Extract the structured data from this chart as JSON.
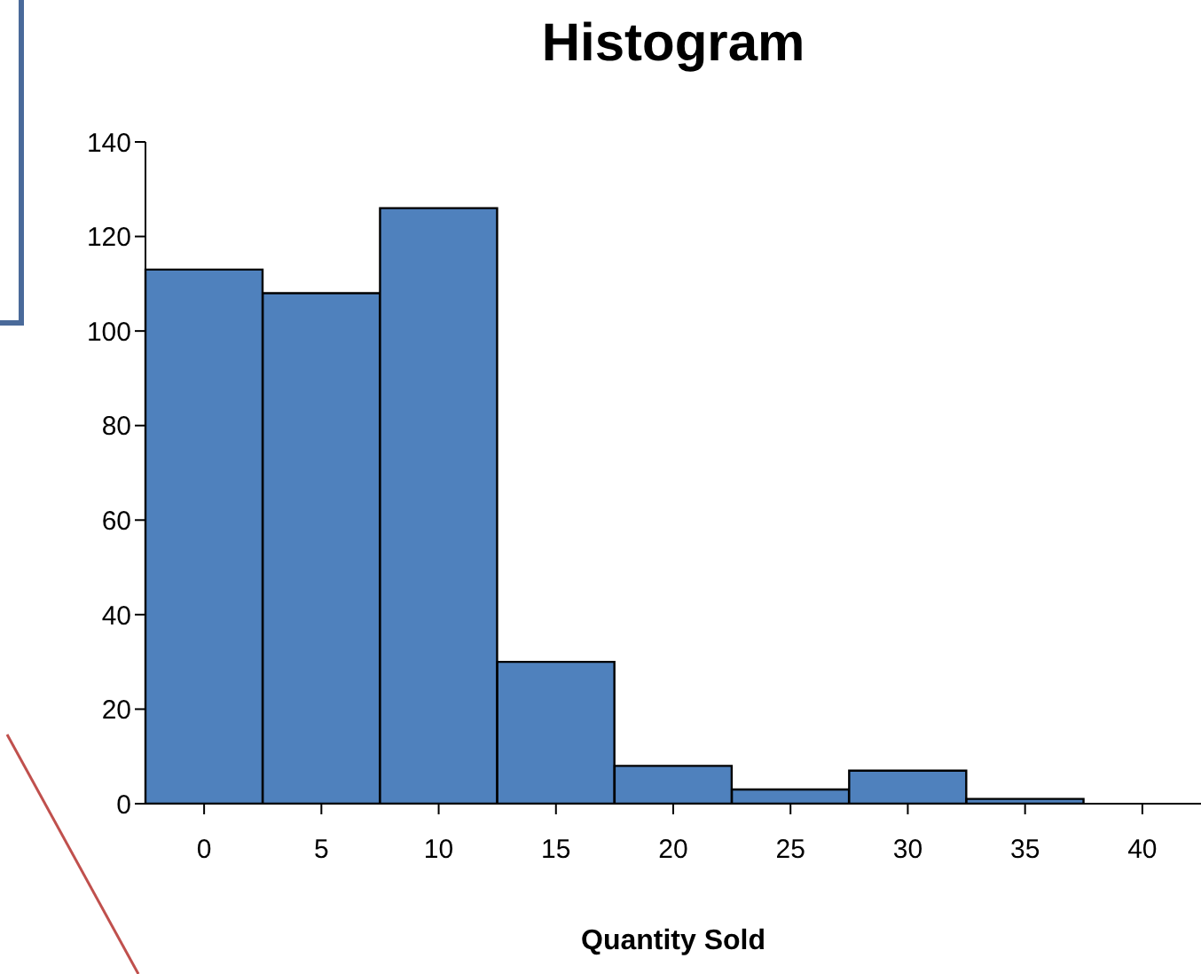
{
  "chart_data": {
    "type": "bar",
    "title": "Histogram",
    "xlabel": "Quantity Sold",
    "categories": [
      "0",
      "5",
      "10",
      "15",
      "20",
      "25",
      "30",
      "35",
      "40"
    ],
    "values": [
      113,
      108,
      126,
      30,
      8,
      3,
      7,
      1,
      0
    ],
    "color": "#4f81bd",
    "ylim": [
      0,
      140
    ],
    "yticks": [
      0,
      20,
      40,
      60,
      80,
      100,
      120,
      140
    ],
    "grid": false,
    "legend": false
  }
}
